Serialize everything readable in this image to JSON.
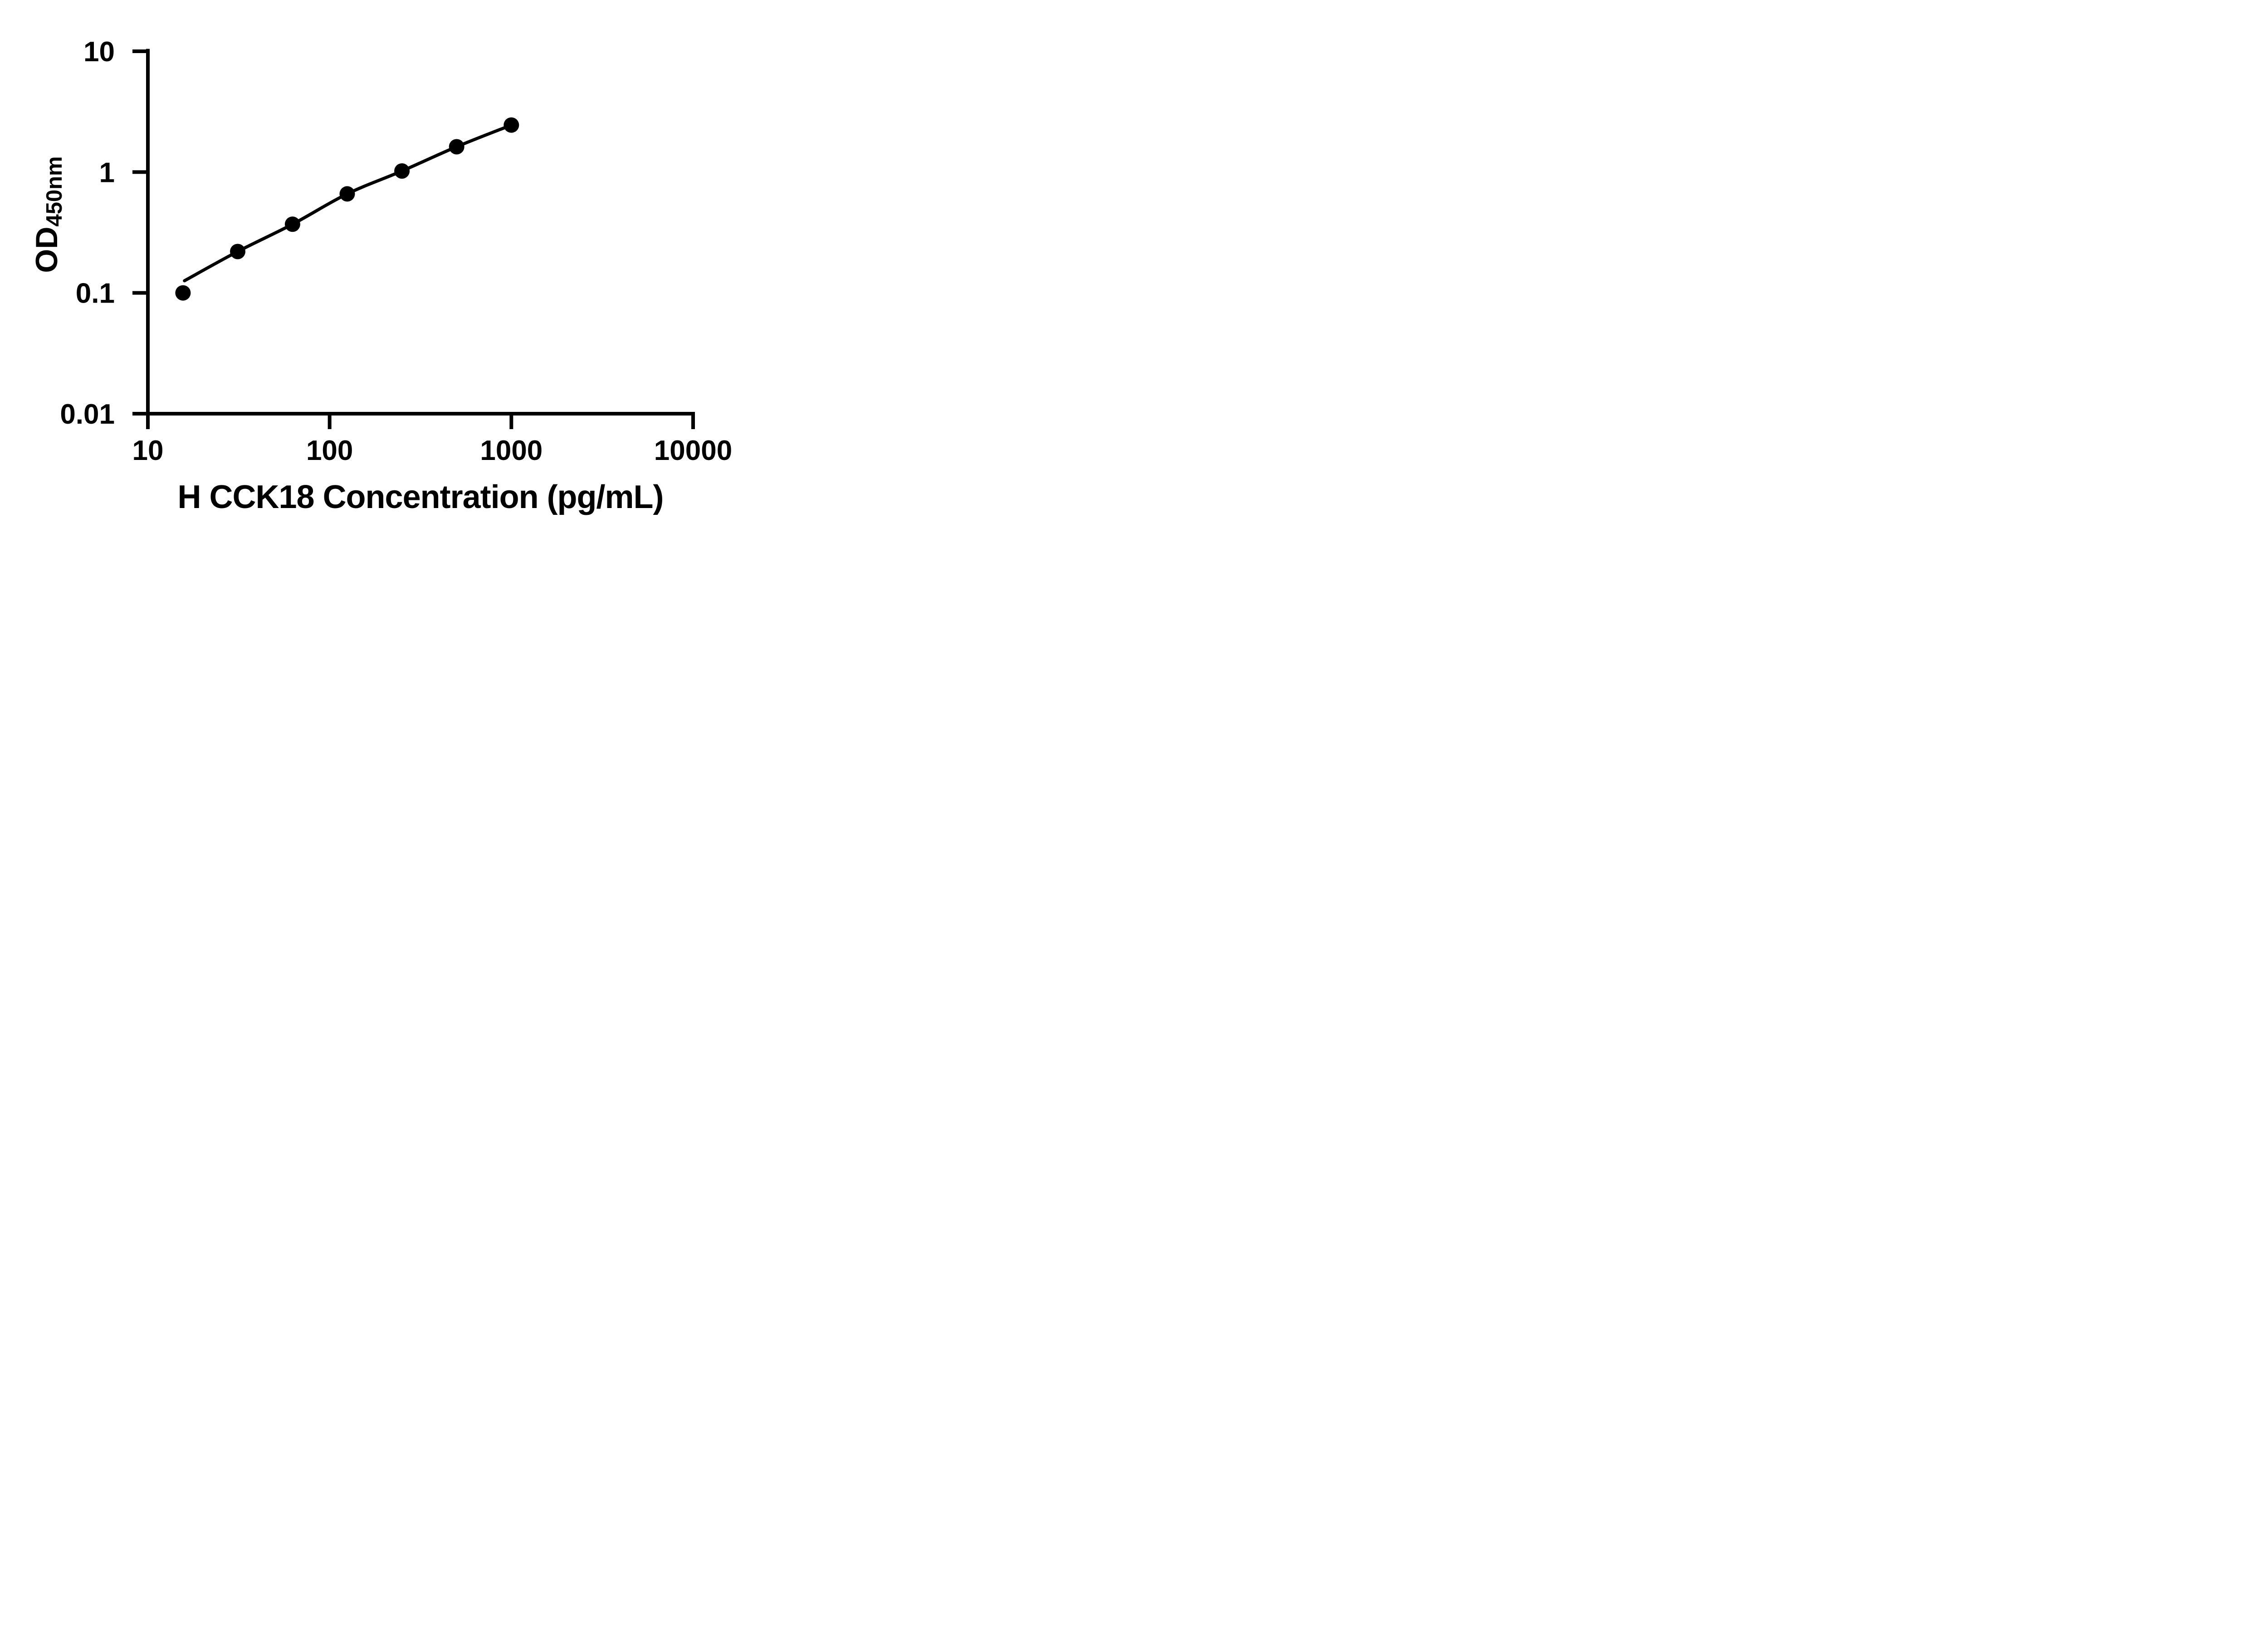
{
  "figure": {
    "background_color": "#FFFFFF",
    "foreground_color": "#000000"
  },
  "chart_data": {
    "type": "scatter",
    "title": "",
    "xlabel": "H CCK18 Concentration (pg/mL)",
    "ylabel": "OD450nm",
    "ylabel_main": "OD",
    "ylabel_sub": "450nm",
    "x_scale": "log10",
    "y_scale": "log10",
    "xlim": [
      10,
      10000
    ],
    "ylim": [
      0.01,
      10
    ],
    "x_ticks": [
      10,
      100,
      1000,
      10000
    ],
    "x_tick_labels": [
      "10",
      "100",
      "1000",
      "10000"
    ],
    "y_ticks": [
      10,
      1,
      0.1,
      0.01
    ],
    "y_tick_labels": [
      "10",
      "1",
      "0.1",
      "0.01"
    ],
    "grid": false,
    "legend": false,
    "marker": {
      "shape": "filled-circle",
      "color": "#000000"
    },
    "line": {
      "color": "#000000",
      "style": "solid"
    },
    "points": [
      {
        "x": 15.6,
        "y": 0.1
      },
      {
        "x": 31.2,
        "y": 0.22
      },
      {
        "x": 62.5,
        "y": 0.37
      },
      {
        "x": 125,
        "y": 0.66
      },
      {
        "x": 250,
        "y": 1.02
      },
      {
        "x": 500,
        "y": 1.62
      },
      {
        "x": 1000,
        "y": 2.45
      }
    ],
    "fitted_curve": {
      "description": "standard curve fit; line starts above first point and ends at last point",
      "start": {
        "x": 15.9,
        "y": 0.126
      },
      "through_point_indices": [
        1,
        2,
        3,
        4,
        5,
        6
      ]
    }
  }
}
